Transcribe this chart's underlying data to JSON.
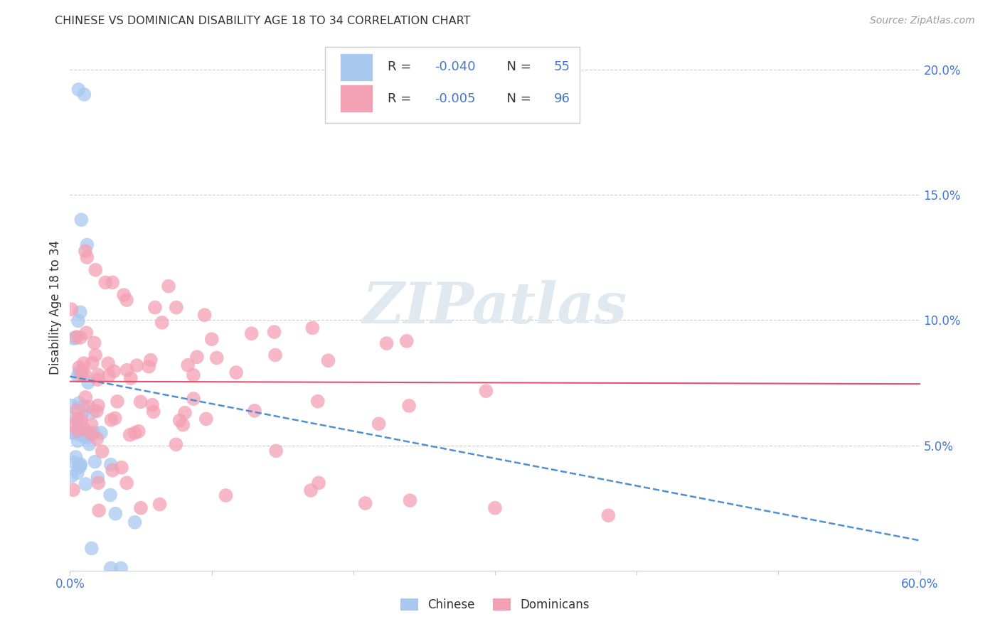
{
  "title": "CHINESE VS DOMINICAN DISABILITY AGE 18 TO 34 CORRELATION CHART",
  "source": "Source: ZipAtlas.com",
  "ylabel": "Disability Age 18 to 34",
  "xmin": 0.0,
  "xmax": 0.6,
  "ymin": 0.0,
  "ymax": 0.21,
  "xtick_vals": [
    0.0,
    0.1,
    0.2,
    0.3,
    0.4,
    0.5,
    0.6
  ],
  "xtick_labels": [
    "0.0%",
    "",
    "",
    "",
    "",
    "",
    "60.0%"
  ],
  "ytick_vals_right": [
    0.0,
    0.05,
    0.1,
    0.15,
    0.2
  ],
  "ytick_labels_right": [
    "",
    "5.0%",
    "10.0%",
    "15.0%",
    "20.0%"
  ],
  "chinese_R": -0.04,
  "chinese_N": 55,
  "dominican_R": -0.005,
  "dominican_N": 96,
  "chinese_color": "#a8c8f0",
  "dominican_color": "#f4a0b4",
  "chinese_line_color": "#5090d0",
  "dominican_line_color": "#e05070",
  "r_text_color": "#4477cc",
  "label_color": "#4477cc",
  "title_color": "#333333",
  "source_color": "#999999",
  "grid_color": "#cccccc",
  "watermark": "ZIPatlas",
  "watermark_color": "#e0e8f0",
  "background_color": "#ffffff",
  "legend_chinese_label": "Chinese",
  "legend_dominican_label": "Dominicans",
  "chinese_trend_y0": 0.0775,
  "chinese_trend_y1": 0.012,
  "dominican_trend_y0": 0.0755,
  "dominican_trend_y1": 0.0745
}
